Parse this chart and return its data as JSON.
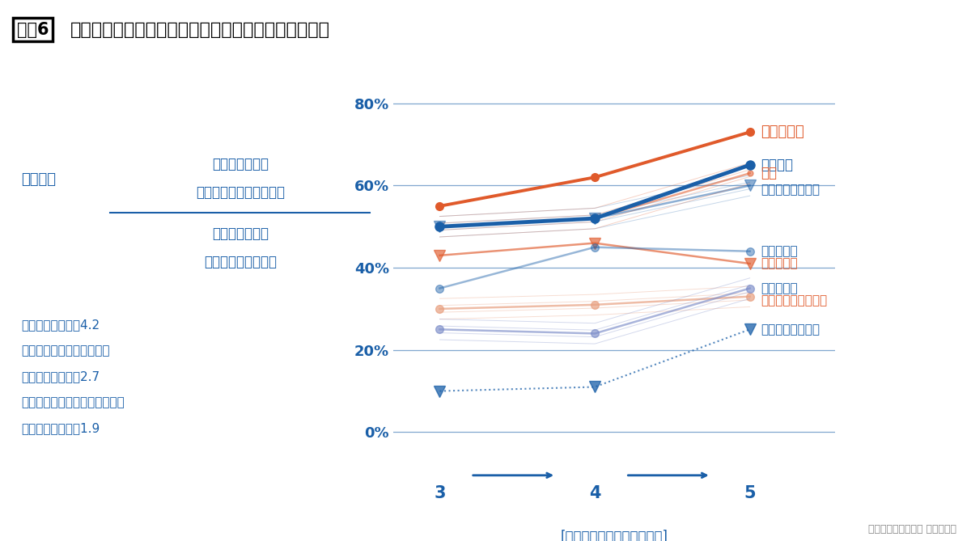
{
  "title_badge": "図表6",
  "title_main": "各種疾患の改善率と転居した住宅の断熱性能との関係",
  "grades": [
    3,
    4,
    5
  ],
  "series": [
    {
      "name": "気管支喘息",
      "values": [
        55,
        62,
        73
      ],
      "color": "#e05a2b",
      "linewidth": 2.8,
      "linestyle": "solid",
      "marker": "o",
      "markersize": 7,
      "label_color": "#e05a2b",
      "label_bold": true,
      "alpha": 1.0,
      "zorder": 10,
      "end_arrow": true
    },
    {
      "name": "喉の痛み",
      "values": [
        50,
        52,
        65
      ],
      "color": "#1a5fa8",
      "linewidth": 3.5,
      "linestyle": "solid",
      "marker": "o",
      "markersize": 8,
      "label_color": "#1a5fa8",
      "label_bold": false,
      "alpha": 1.0,
      "zorder": 9,
      "end_arrow": false
    },
    {
      "name": "せき",
      "values": [
        50,
        52,
        63
      ],
      "color": "#e05a2b",
      "linewidth": 1.8,
      "linestyle": "solid",
      "marker": "o",
      "markersize": 5,
      "label_color": "#e05a2b",
      "label_bold": true,
      "alpha": 0.55,
      "zorder": 8,
      "end_arrow": false,
      "hatch_lines": true
    },
    {
      "name": "アトピー性皮膚炎",
      "values": [
        50,
        52,
        60
      ],
      "color": "#1a5fa8",
      "linewidth": 1.8,
      "linestyle": "solid",
      "marker": "v",
      "markersize": 10,
      "label_color": "#1a5fa8",
      "label_bold": false,
      "alpha": 0.5,
      "zorder": 7,
      "end_arrow": true,
      "hatch_lines": true
    },
    {
      "name": "手足の冷え",
      "values": [
        35,
        45,
        44
      ],
      "color": "#1a5fa8",
      "linewidth": 1.8,
      "linestyle": "solid",
      "marker": "o",
      "markersize": 7,
      "label_color": "#1a5fa8",
      "label_bold": false,
      "alpha": 0.45,
      "zorder": 6,
      "end_arrow": false
    },
    {
      "name": "肌のかゆみ",
      "values": [
        43,
        46,
        41
      ],
      "color": "#e05a2b",
      "linewidth": 1.8,
      "linestyle": "solid",
      "marker": "v",
      "markersize": 10,
      "label_color": "#e05a2b",
      "label_bold": true,
      "alpha": 0.65,
      "zorder": 5,
      "end_arrow": true
    },
    {
      "name": "目のかゆみ",
      "values": [
        25,
        24,
        35
      ],
      "color": "#7b8cc8",
      "linewidth": 1.8,
      "linestyle": "solid",
      "marker": "o",
      "markersize": 7,
      "label_color": "#1a5fa8",
      "label_bold": false,
      "alpha": 0.65,
      "zorder": 4,
      "end_arrow": false,
      "hatch_lines": true
    },
    {
      "name": "アレルギー性結膜炎",
      "values": [
        30,
        31,
        33
      ],
      "color": "#e8a080",
      "linewidth": 1.8,
      "linestyle": "solid",
      "marker": "o",
      "markersize": 7,
      "label_color": "#e05a2b",
      "label_bold": true,
      "alpha": 0.7,
      "zorder": 3,
      "end_arrow": false,
      "hatch_lines": true
    },
    {
      "name": "アレルギー性鼻炎",
      "values": [
        10,
        11,
        25
      ],
      "color": "#1a5fa8",
      "linewidth": 1.5,
      "linestyle": "dotted",
      "marker": "v",
      "markersize": 10,
      "label_color": "#1a5fa8",
      "label_bold": false,
      "alpha": 0.75,
      "zorder": 2,
      "end_arrow": true
    }
  ],
  "xlabel": "[転居後の住宅断熱グレード]",
  "ylabel_pct_ticks": [
    0,
    20,
    40,
    60,
    80
  ],
  "ylim": [
    -12,
    90
  ],
  "xlim": [
    2.7,
    5.55
  ],
  "chart_right_labels": [
    {
      "name": "気管支喘息",
      "y": 73,
      "color": "#e05a2b",
      "bold": true,
      "size": 13
    },
    {
      "name": "喉の痛み",
      "y": 65,
      "color": "#1a5fa8",
      "bold": false,
      "size": 12
    },
    {
      "name": "せき",
      "y": 63,
      "color": "#e05a2b",
      "bold": true,
      "size": 12
    },
    {
      "name": "アトピー性皮膚炎",
      "y": 59,
      "color": "#1a5fa8",
      "bold": false,
      "size": 11
    },
    {
      "name": "手足の冷え",
      "y": 44,
      "color": "#1a5fa8",
      "bold": false,
      "size": 11
    },
    {
      "name": "肌のかゆみ",
      "y": 41,
      "color": "#e05a2b",
      "bold": true,
      "size": 11
    },
    {
      "name": "目のかゆみ",
      "y": 35,
      "color": "#1a5fa8",
      "bold": false,
      "size": 11
    },
    {
      "name": "アレルギー性結膜炎",
      "y": 32,
      "color": "#e05a2b",
      "bold": true,
      "size": 11
    },
    {
      "name": "アレルギー性鼻炎",
      "y": 25,
      "color": "#1a5fa8",
      "bold": false,
      "size": 11
    }
  ],
  "blue_color": "#1a5fa8",
  "red_color": "#e05a2b",
  "grade_notes_line1": "グレード３＝Ｑ値4.2",
  "grade_notes_line2": "（新省エネ基準レベル）、",
  "grade_notes_line3": "グレード４＝Ｑ値2.7",
  "grade_notes_line4": "（次世代省エネ基準レベル）、",
  "grade_notes_line5": "グレード５＝Ｑ値1.9",
  "formula_label": "改善率＝",
  "formula_num1": "新しい住まいで",
  "formula_num2": "症状が出なくなった人数",
  "formula_den1": "以前の住まいで",
  "formula_den2": "症状が出ていた人数",
  "reference": "参考資料：近畿大学 岩前篤教授",
  "background_color": "#ffffff"
}
